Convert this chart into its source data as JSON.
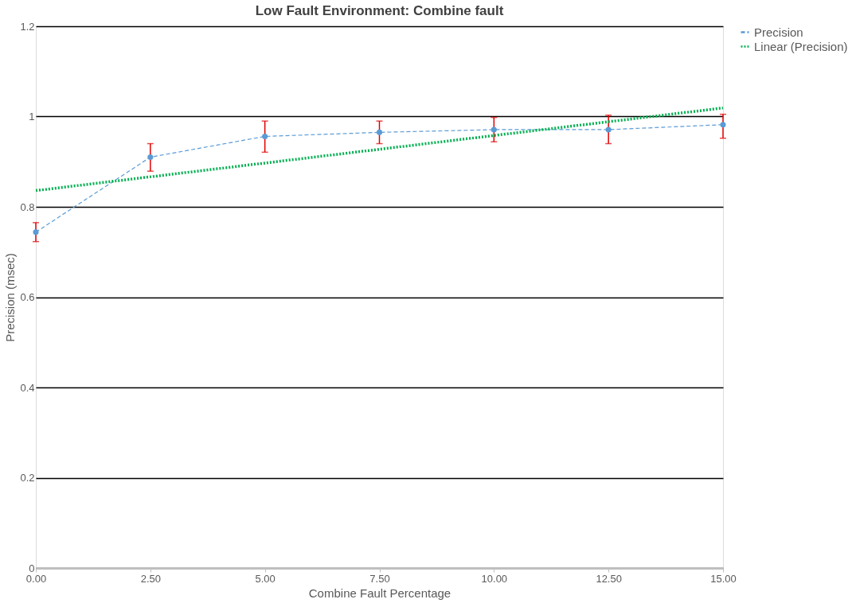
{
  "chart_data": {
    "type": "line",
    "title": "Low Fault Environment: Combine fault",
    "xlabel": "Combine Fault Percentage",
    "ylabel": "Precision (msec)",
    "x": [
      0,
      2.5,
      5,
      7.5,
      10,
      12.5,
      15
    ],
    "series": [
      {
        "name": "Precision",
        "color": "#5b9bd5",
        "values": [
          0.744,
          0.91,
          0.956,
          0.965,
          0.971,
          0.971,
          0.982
        ],
        "errors": [
          [
            0.723,
            0.765
          ],
          [
            0.879,
            0.94
          ],
          [
            0.921,
            0.99
          ],
          [
            0.94,
            0.99
          ],
          [
            0.944,
            0.998
          ],
          [
            0.94,
            1.003
          ],
          [
            0.952,
            1.005
          ]
        ],
        "marker": "circle",
        "line_style": "dashed"
      },
      {
        "name": "Linear (Precision)",
        "type": "line",
        "color": "#00b050",
        "x": [
          0,
          15
        ],
        "values": [
          0.836,
          1.019
        ],
        "marker": "none",
        "line_style": "dotted"
      }
    ],
    "xlim": [
      0,
      15
    ],
    "xticks": [
      {
        "value": 0,
        "label": "0.00"
      },
      {
        "value": 2.5,
        "label": "2.50"
      },
      {
        "value": 5,
        "label": "5.00"
      },
      {
        "value": 7.5,
        "label": "7.50"
      },
      {
        "value": 10,
        "label": "10.00"
      },
      {
        "value": 12.5,
        "label": "12.50"
      },
      {
        "value": 15,
        "label": "15.00"
      }
    ],
    "ylim": [
      0,
      1.2
    ],
    "yticks": [
      0,
      0.2,
      0.4,
      0.6,
      0.8,
      1,
      1.2
    ],
    "grid": "y",
    "legend": "right"
  }
}
